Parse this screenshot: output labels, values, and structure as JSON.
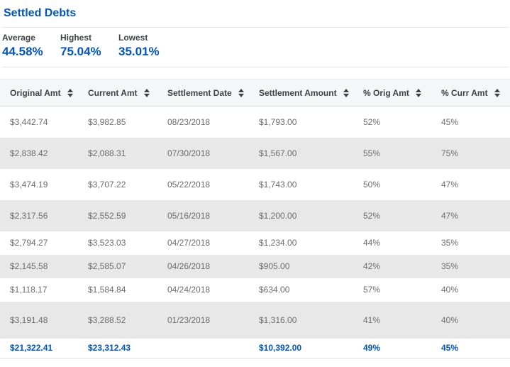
{
  "page": {
    "title": "Settled Debts"
  },
  "stats": [
    {
      "label": "Average",
      "value": "44.58%"
    },
    {
      "label": "Highest",
      "value": "75.04%"
    },
    {
      "label": "Lowest",
      "value": "35.01%"
    }
  ],
  "table": {
    "columns": [
      "Original Amt",
      "Current Amt",
      "Settlement Date",
      "Settlement Amount",
      "% Orig Amt",
      "% Curr Amt"
    ],
    "sortable": true,
    "rows": [
      [
        "$3,442.74",
        "$3,982.85",
        "08/23/2018",
        "$1,793.00",
        "52%",
        "45%"
      ],
      [
        "$2,838.42",
        "$2,088.31",
        "07/30/2018",
        "$1,567.00",
        "55%",
        "75%"
      ],
      [
        "$3,474.19",
        "$3,707.22",
        "05/22/2018",
        "$1,743.00",
        "50%",
        "47%"
      ],
      [
        "$2,317.56",
        "$2,552.59",
        "05/16/2018",
        "$1,200.00",
        "52%",
        "47%"
      ],
      [
        "$2,794.27",
        "$3,523.03",
        "04/27/2018",
        "$1,234.00",
        "44%",
        "35%"
      ],
      [
        "$2,145.58",
        "$2,585.07",
        "04/26/2018",
        "$905.00",
        "42%",
        "35%"
      ],
      [
        "$1,118.17",
        "$1,584.84",
        "04/24/2018",
        "$634.00",
        "57%",
        "40%"
      ],
      [
        "$3,191.48",
        "$3,288.52",
        "01/23/2018",
        "$1,316.00",
        "41%",
        "40%"
      ]
    ],
    "totals": [
      "$21,322.41",
      "$23,312.43",
      "",
      "$10,392.00",
      "49%",
      "45%"
    ]
  },
  "icons": {
    "sort": "sort-icon"
  },
  "colors": {
    "accent_blue": "#0056c1",
    "header_bg": "#f5f6f7",
    "stripe_gray": "#e8e8e8",
    "body_text": "#6d6d6d",
    "header_text": "#3d4247",
    "divider": "#e7e7e7"
  }
}
